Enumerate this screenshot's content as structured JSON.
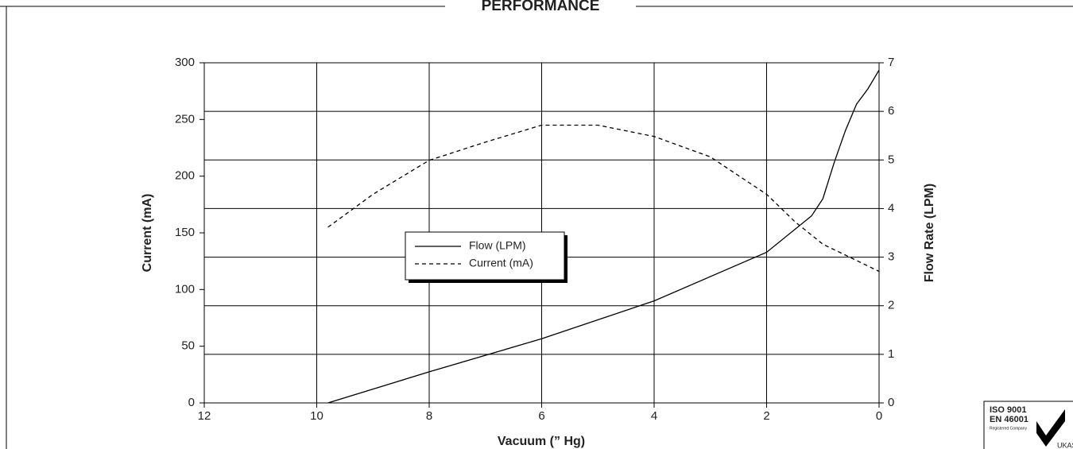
{
  "chart_data": {
    "type": "line",
    "title": "PERFORMANCE",
    "xlabel": "Vacuum (” Hg)",
    "ylabel": "Current (mA)",
    "y2label": "Flow Rate (LPM)",
    "xlim": [
      12,
      0
    ],
    "xticks": [
      12,
      10,
      8,
      6,
      4,
      2,
      0
    ],
    "ylim": [
      0,
      300
    ],
    "yticks": [
      0,
      50,
      100,
      150,
      200,
      250,
      300
    ],
    "y2lim": [
      0,
      7
    ],
    "y2ticks": [
      0,
      1,
      2,
      3,
      4,
      5,
      6,
      7
    ],
    "grid": true,
    "series": [
      {
        "name": "Flow (LPM)",
        "color": "#000000",
        "line_style": "solid",
        "axis": "y2",
        "x": [
          9.8,
          8,
          6,
          4,
          2,
          1.2,
          1,
          0.8,
          0.6,
          0.4,
          0.2,
          0
        ],
        "values": [
          0,
          0.64,
          1.32,
          2.1,
          3.1,
          3.85,
          4.2,
          4.94,
          5.6,
          6.15,
          6.46,
          6.85
        ]
      },
      {
        "name": "Current (mA)",
        "color": "#000000",
        "line_style": "dashed",
        "x": [
          9.8,
          9,
          8,
          7,
          6,
          5,
          4,
          3,
          2,
          1.5,
          1,
          0.5,
          0
        ],
        "values": [
          155,
          184,
          214,
          230,
          245,
          245,
          235,
          217,
          184,
          160,
          140,
          128,
          116
        ]
      }
    ]
  },
  "badge": {
    "line1": "ISO 9001",
    "line2": "EN 46001",
    "line3": "Registered Company",
    "mark": "UKAS"
  }
}
